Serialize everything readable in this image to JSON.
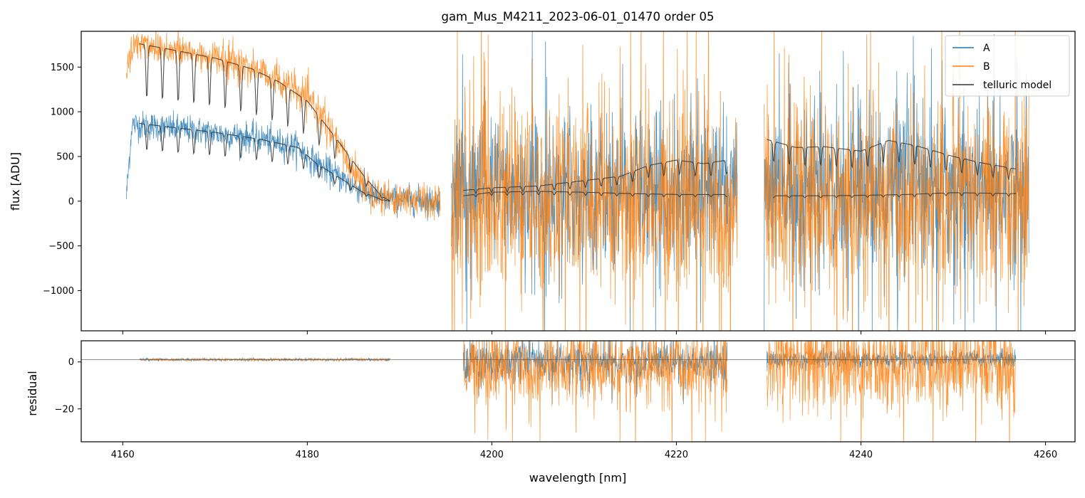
{
  "chart_data": [
    {
      "panel": "top",
      "type": "line",
      "title": "gam_Mus_M4211_2023-06-01_01470  order 05",
      "xlabel": "",
      "ylabel": "flux [ADU]",
      "xlim": [
        4155.5,
        4263.2
      ],
      "ylim": [
        -1450,
        1900
      ],
      "xticks": [
        4160,
        4180,
        4200,
        4220,
        4240,
        4260
      ],
      "yticks": [
        -1000,
        -500,
        0,
        500,
        1000,
        1500
      ],
      "ytick_labels": [
        "−1000",
        "−500",
        "0",
        "500",
        "1000",
        "1500"
      ],
      "legend": {
        "position": "top-right",
        "entries": [
          "A",
          "B",
          "telluric model"
        ]
      },
      "colors": {
        "A": "#1f77b4",
        "B": "#ff7f0e",
        "telluric model": "#333333"
      },
      "series": [
        {
          "name": "A",
          "segments": [
            {
              "x_range": [
                4160.4,
                4194.4
              ],
              "envelope": [
                [
                  4160.4,
                  50
                ],
                [
                  4161,
                  860
                ],
                [
                  4165,
                  820
                ],
                [
                  4170,
                  760
                ],
                [
                  4175,
                  700
                ],
                [
                  4179,
                  600
                ],
                [
                  4181,
                  420
                ],
                [
                  4184,
                  230
                ],
                [
                  4186,
                  120
                ],
                [
                  4188,
                  30
                ],
                [
                  4194,
                  0
                ]
              ],
              "noise": 80
            },
            {
              "x_range": [
                4195.6,
                4226.6
              ],
              "envelope": [
                [
                  4195.6,
                  100
                ],
                [
                  4226.6,
                  150
                ]
              ],
              "noise": 400
            },
            {
              "x_range": [
                4229.5,
                4258.2
              ],
              "envelope": [
                [
                  4229.5,
                  150
                ],
                [
                  4258.2,
                  150
                ]
              ],
              "noise": 450
            }
          ]
        },
        {
          "name": "B",
          "segments": [
            {
              "x_range": [
                4160.4,
                4194.4
              ],
              "envelope": [
                [
                  4160.4,
                  1500
                ],
                [
                  4161.5,
                  1780
                ],
                [
                  4165,
                  1700
                ],
                [
                  4170,
                  1600
                ],
                [
                  4175,
                  1460
                ],
                [
                  4178,
                  1280
                ],
                [
                  4181,
                  1050
                ],
                [
                  4184,
                  500
                ],
                [
                  4186,
                  200
                ],
                [
                  4188,
                  50
                ],
                [
                  4194,
                  0
                ]
              ],
              "noise": 100
            },
            {
              "x_range": [
                4195.6,
                4226.6
              ],
              "envelope": [
                [
                  4195.6,
                  50
                ],
                [
                  4226.6,
                  -20
                ]
              ],
              "noise": 550
            },
            {
              "x_range": [
                4229.5,
                4258.2
              ],
              "envelope": [
                [
                  4229.5,
                  0
                ],
                [
                  4258.2,
                  0
                ]
              ],
              "noise": 550
            }
          ]
        },
        {
          "name": "telluric model",
          "segments": [
            {
              "curve": [
                [
                  4161.8,
                  1760
                ],
                [
                  4165,
                  1700
                ],
                [
                  4170,
                  1600
                ],
                [
                  4174,
                  1480
                ],
                [
                  4177,
                  1330
                ],
                [
                  4180,
                  1120
                ],
                [
                  4183,
                  720
                ],
                [
                  4186,
                  300
                ],
                [
                  4188,
                  60
                ],
                [
                  4189,
                  0
                ]
              ]
            },
            {
              "curve": [
                [
                  4161.8,
                  870
                ],
                [
                  4165,
                  830
                ],
                [
                  4170,
                  770
                ],
                [
                  4175,
                  690
                ],
                [
                  4179,
                  600
                ],
                [
                  4181,
                  420
                ],
                [
                  4184,
                  230
                ],
                [
                  4186,
                  100
                ],
                [
                  4188,
                  20
                ],
                [
                  4189,
                  0
                ]
              ]
            },
            {
              "curve": [
                [
                  4196.9,
                  120
                ],
                [
                  4200,
                  150
                ],
                [
                  4205,
                  170
                ],
                [
                  4210,
                  230
                ],
                [
                  4214,
                  280
                ],
                [
                  4217,
                  400
                ],
                [
                  4220,
                  460
                ],
                [
                  4223,
                  420
                ],
                [
                  4225.5,
                  460
                ]
              ]
            },
            {
              "curve": [
                [
                  4196.9,
                  60
                ],
                [
                  4200,
                  100
                ],
                [
                  4205,
                  110
                ],
                [
                  4210,
                  100
                ],
                [
                  4215,
                  85
                ],
                [
                  4220,
                  75
                ],
                [
                  4225.5,
                  75
                ]
              ]
            },
            {
              "curve": [
                [
                  4229.8,
                  690
                ],
                [
                  4233,
                  600
                ],
                [
                  4236,
                  610
                ],
                [
                  4240,
                  560
                ],
                [
                  4243,
                  680
                ],
                [
                  4246,
                  620
                ],
                [
                  4250,
                  500
                ],
                [
                  4253,
                  430
                ],
                [
                  4256.8,
                  360
                ]
              ]
            },
            {
              "curve": [
                [
                  4230.5,
                  60
                ],
                [
                  4235,
                  60
                ],
                [
                  4240,
                  65
                ],
                [
                  4245,
                  75
                ],
                [
                  4250,
                  95
                ],
                [
                  4256.8,
                  85
                ]
              ]
            }
          ]
        }
      ]
    },
    {
      "panel": "bottom",
      "type": "line",
      "title": "",
      "xlabel": "wavelength [nm]",
      "ylabel": "residual",
      "xlim": [
        4155.5,
        4263.2
      ],
      "ylim": [
        -34,
        9
      ],
      "xticks": [
        4160,
        4180,
        4200,
        4220,
        4240,
        4260
      ],
      "yticks": [
        -20,
        0
      ],
      "ytick_labels": [
        "−20",
        "0"
      ],
      "reference_line": 1,
      "series": [
        {
          "name": "A",
          "segments": [
            {
              "x_range": [
                4161.8,
                4189.0
              ],
              "baseline": 1,
              "noise": 0.3
            },
            {
              "x_range": [
                4196.9,
                4225.5
              ],
              "baseline": 0,
              "noise": 4
            },
            {
              "x_range": [
                4229.8,
                4256.8
              ],
              "baseline": 1,
              "noise": 2
            }
          ]
        },
        {
          "name": "B",
          "segments": [
            {
              "x_range": [
                4161.8,
                4189.0
              ],
              "baseline": 1,
              "noise": 0.3
            },
            {
              "x_range": [
                4196.9,
                4225.5
              ],
              "baseline": -2,
              "noise": 8
            },
            {
              "x_range": [
                4229.8,
                4256.8
              ],
              "baseline": -2,
              "noise": 10
            }
          ]
        }
      ]
    }
  ]
}
